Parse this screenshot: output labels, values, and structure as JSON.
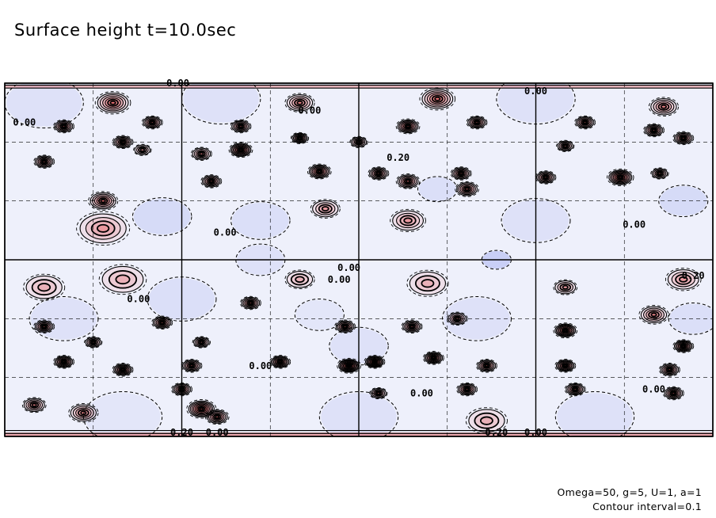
{
  "chart_data": {
    "type": "heatmap",
    "title": "Surface height t=10.0sec",
    "field": "surface height",
    "time": "t=10.0sec",
    "parameters_text": "Omega=50, g=5, U=1, a=1",
    "contour_interval_text": "Contour interval=0.1",
    "contour_interval": 0.1,
    "xlim": [
      0,
      360
    ],
    "ylim": [
      -90,
      90
    ],
    "grid": true,
    "grid_x": [
      0,
      45,
      90,
      135,
      180,
      225,
      270,
      315,
      360
    ],
    "grid_y": [
      -90,
      -60,
      -30,
      0,
      30,
      60,
      90
    ],
    "positive_color": "#e85050",
    "negative_color": "#6070e8",
    "contour_labels": [
      {
        "text": "0.00",
        "x": 88,
        "y": 90
      },
      {
        "text": "0.00",
        "x": 10,
        "y": 70
      },
      {
        "text": "0.00",
        "x": 155,
        "y": 76
      },
      {
        "text": "0.20",
        "x": 200,
        "y": 52
      },
      {
        "text": "0.00",
        "x": 112,
        "y": 14
      },
      {
        "text": "0.00",
        "x": 175,
        "y": -4
      },
      {
        "text": "0.00",
        "x": 68,
        "y": -20
      },
      {
        "text": "0.00",
        "x": 170,
        "y": -10
      },
      {
        "text": "0.00",
        "x": 320,
        "y": 18
      },
      {
        "text": "0.20",
        "x": 350,
        "y": -8
      },
      {
        "text": "0.00",
        "x": 130,
        "y": -54
      },
      {
        "text": "0.00",
        "x": 212,
        "y": -68
      },
      {
        "text": "0.00",
        "x": 330,
        "y": -66
      },
      {
        "text": "0.20",
        "x": 90,
        "y": -88
      },
      {
        "text": "0.00",
        "x": 108,
        "y": -88
      },
      {
        "text": "0.20",
        "x": 250,
        "y": -88
      },
      {
        "text": "0.00",
        "x": 270,
        "y": -88
      },
      {
        "text": "0.00",
        "x": 270,
        "y": 86
      }
    ],
    "highs": [
      {
        "x": 55,
        "y": 80,
        "amp": 0.55,
        "r": 6
      },
      {
        "x": 150,
        "y": 80,
        "amp": 0.45,
        "r": 5
      },
      {
        "x": 220,
        "y": 82,
        "amp": 0.55,
        "r": 6
      },
      {
        "x": 335,
        "y": 78,
        "amp": 0.45,
        "r": 5
      },
      {
        "x": 30,
        "y": 68,
        "amp": 0.6,
        "r": 3.5
      },
      {
        "x": 75,
        "y": 70,
        "amp": 0.6,
        "r": 3.5
      },
      {
        "x": 120,
        "y": 68,
        "amp": 0.6,
        "r": 3.5
      },
      {
        "x": 150,
        "y": 62,
        "amp": 0.6,
        "r": 3
      },
      {
        "x": 205,
        "y": 68,
        "amp": 0.7,
        "r": 4
      },
      {
        "x": 240,
        "y": 70,
        "amp": 0.6,
        "r": 3.5
      },
      {
        "x": 295,
        "y": 70,
        "amp": 0.6,
        "r": 3.5
      },
      {
        "x": 330,
        "y": 66,
        "amp": 0.6,
        "r": 3.5
      },
      {
        "x": 60,
        "y": 60,
        "amp": 0.6,
        "r": 3.5
      },
      {
        "x": 100,
        "y": 54,
        "amp": 0.5,
        "r": 3.5
      },
      {
        "x": 120,
        "y": 56,
        "amp": 0.8,
        "r": 4
      },
      {
        "x": 180,
        "y": 60,
        "amp": 0.5,
        "r": 3
      },
      {
        "x": 285,
        "y": 58,
        "amp": 0.5,
        "r": 3
      },
      {
        "x": 345,
        "y": 62,
        "amp": 0.6,
        "r": 3.5
      },
      {
        "x": 70,
        "y": 56,
        "amp": 0.4,
        "r": 3
      },
      {
        "x": 20,
        "y": 50,
        "amp": 0.6,
        "r": 3.5
      },
      {
        "x": 160,
        "y": 45,
        "amp": 0.7,
        "r": 4
      },
      {
        "x": 190,
        "y": 44,
        "amp": 0.6,
        "r": 3.5
      },
      {
        "x": 232,
        "y": 44,
        "amp": 0.6,
        "r": 3.5
      },
      {
        "x": 275,
        "y": 42,
        "amp": 0.6,
        "r": 3.5
      },
      {
        "x": 313,
        "y": 42,
        "amp": 0.8,
        "r": 4.5
      },
      {
        "x": 333,
        "y": 44,
        "amp": 0.5,
        "r": 3
      },
      {
        "x": 105,
        "y": 40,
        "amp": 0.6,
        "r": 3.5
      },
      {
        "x": 50,
        "y": 30,
        "amp": 0.6,
        "r": 5
      },
      {
        "x": 205,
        "y": 40,
        "amp": 0.6,
        "r": 4
      },
      {
        "x": 235,
        "y": 36,
        "amp": 0.6,
        "r": 4
      },
      {
        "x": 163,
        "y": 26,
        "amp": 0.4,
        "r": 5
      },
      {
        "x": 205,
        "y": 20,
        "amp": 0.4,
        "r": 6
      },
      {
        "x": 50,
        "y": 16,
        "amp": 0.4,
        "r": 9
      },
      {
        "x": 60,
        "y": -10,
        "amp": 0.35,
        "r": 8
      },
      {
        "x": 20,
        "y": -14,
        "amp": 0.3,
        "r": 7
      },
      {
        "x": 150,
        "y": -10,
        "amp": 0.3,
        "r": 5
      },
      {
        "x": 215,
        "y": -12,
        "amp": 0.35,
        "r": 7
      },
      {
        "x": 285,
        "y": -14,
        "amp": 0.4,
        "r": 4
      },
      {
        "x": 345,
        "y": -10,
        "amp": 0.4,
        "r": 6
      },
      {
        "x": 330,
        "y": -28,
        "amp": 0.5,
        "r": 5
      },
      {
        "x": 125,
        "y": -22,
        "amp": 0.6,
        "r": 3.5
      },
      {
        "x": 80,
        "y": -32,
        "amp": 0.6,
        "r": 3.5
      },
      {
        "x": 173,
        "y": -34,
        "amp": 0.6,
        "r": 3.5
      },
      {
        "x": 207,
        "y": -34,
        "amp": 0.6,
        "r": 3.5
      },
      {
        "x": 230,
        "y": -30,
        "amp": 0.5,
        "r": 3.5
      },
      {
        "x": 285,
        "y": -36,
        "amp": 0.8,
        "r": 4
      },
      {
        "x": 20,
        "y": -34,
        "amp": 0.6,
        "r": 3.5
      },
      {
        "x": 45,
        "y": -42,
        "amp": 0.5,
        "r": 3
      },
      {
        "x": 100,
        "y": -42,
        "amp": 0.5,
        "r": 3
      },
      {
        "x": 345,
        "y": -44,
        "amp": 0.7,
        "r": 3.5
      },
      {
        "x": 30,
        "y": -52,
        "amp": 0.7,
        "r": 3.5
      },
      {
        "x": 60,
        "y": -56,
        "amp": 0.7,
        "r": 3.5
      },
      {
        "x": 95,
        "y": -54,
        "amp": 0.6,
        "r": 3.5
      },
      {
        "x": 140,
        "y": -52,
        "amp": 0.7,
        "r": 3.5
      },
      {
        "x": 175,
        "y": -54,
        "amp": 0.9,
        "r": 4
      },
      {
        "x": 188,
        "y": -52,
        "amp": 0.8,
        "r": 3.5
      },
      {
        "x": 218,
        "y": -50,
        "amp": 0.7,
        "r": 3.5
      },
      {
        "x": 245,
        "y": -54,
        "amp": 0.6,
        "r": 3.5
      },
      {
        "x": 285,
        "y": -54,
        "amp": 0.7,
        "r": 3.5
      },
      {
        "x": 338,
        "y": -56,
        "amp": 0.6,
        "r": 3.5
      },
      {
        "x": 90,
        "y": -66,
        "amp": 0.6,
        "r": 3.5
      },
      {
        "x": 190,
        "y": -68,
        "amp": 0.5,
        "r": 3
      },
      {
        "x": 235,
        "y": -66,
        "amp": 0.6,
        "r": 3.5
      },
      {
        "x": 290,
        "y": -66,
        "amp": 0.6,
        "r": 3.5
      },
      {
        "x": 340,
        "y": -68,
        "amp": 0.6,
        "r": 3.5
      },
      {
        "x": 15,
        "y": -74,
        "amp": 0.5,
        "r": 4
      },
      {
        "x": 40,
        "y": -78,
        "amp": 0.5,
        "r": 5
      },
      {
        "x": 100,
        "y": -76,
        "amp": 0.8,
        "r": 5
      },
      {
        "x": 108,
        "y": -80,
        "amp": 0.6,
        "r": 4
      },
      {
        "x": 245,
        "y": -82,
        "amp": 0.35,
        "r": 7
      }
    ],
    "lows": [
      {
        "x": 80,
        "y": 22,
        "amp": -0.15,
        "r": 12
      },
      {
        "x": 130,
        "y": 20,
        "amp": -0.12,
        "r": 12
      },
      {
        "x": 220,
        "y": 36,
        "amp": -0.12,
        "r": 8
      },
      {
        "x": 250,
        "y": 0,
        "amp": -0.25,
        "r": 6
      },
      {
        "x": 345,
        "y": 30,
        "amp": -0.15,
        "r": 10
      },
      {
        "x": 270,
        "y": 20,
        "amp": -0.1,
        "r": 14
      },
      {
        "x": 90,
        "y": -20,
        "amp": -0.12,
        "r": 14
      },
      {
        "x": 30,
        "y": -30,
        "amp": -0.1,
        "r": 14
      },
      {
        "x": 130,
        "y": 0,
        "amp": -0.1,
        "r": 10
      },
      {
        "x": 240,
        "y": -30,
        "amp": -0.1,
        "r": 14
      },
      {
        "x": 300,
        "y": -80,
        "amp": -0.1,
        "r": 16
      },
      {
        "x": 180,
        "y": -80,
        "amp": -0.1,
        "r": 16
      },
      {
        "x": 60,
        "y": -80,
        "amp": -0.08,
        "r": 16
      },
      {
        "x": 20,
        "y": 80,
        "amp": -0.1,
        "r": 16
      },
      {
        "x": 110,
        "y": 82,
        "amp": -0.1,
        "r": 16
      },
      {
        "x": 270,
        "y": 82,
        "amp": -0.1,
        "r": 16
      },
      {
        "x": 180,
        "y": -44,
        "amp": -0.1,
        "r": 12
      },
      {
        "x": 350,
        "y": -30,
        "amp": -0.12,
        "r": 10
      },
      {
        "x": 160,
        "y": -28,
        "amp": -0.08,
        "r": 10
      }
    ]
  }
}
